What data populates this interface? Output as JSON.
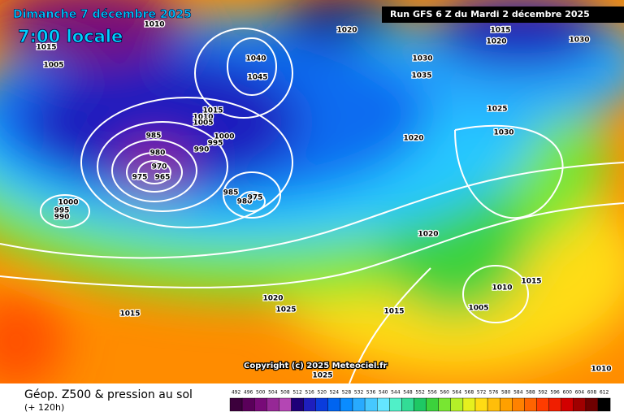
{
  "header": {
    "date": "Dimanche 7 décembre 2025",
    "time": "7:00 locale",
    "run": "Run GFS 6 Z du Mardi 2 décembre 2025"
  },
  "map": {
    "isobar_labels": [
      1010,
      1015,
      1005,
      1020,
      1030,
      1035,
      1015,
      1020,
      1030,
      1040,
      1045,
      1015,
      1010,
      1005,
      1000,
      995,
      990,
      985,
      980,
      970,
      975,
      965,
      985,
      980,
      975,
      1000,
      995,
      990,
      1025,
      1030,
      1020,
      1020,
      1020,
      1025,
      1015,
      1015,
      1010,
      1005,
      1015,
      1025,
      1010
    ],
    "copyright": "Copyright (c) 2025 Meteociel.fr"
  },
  "footer": {
    "title": "Géop. Z500 & pression au sol",
    "lead": "(+ 120h)"
  },
  "legend": {
    "ticks": [
      492,
      496,
      500,
      504,
      508,
      512,
      516,
      520,
      524,
      528,
      532,
      536,
      540,
      544,
      548,
      552,
      556,
      560,
      564,
      568,
      572,
      576,
      580,
      584,
      588,
      592,
      596,
      600,
      604,
      608,
      612
    ],
    "colors": [
      "#3c003c",
      "#5a005a",
      "#780a78",
      "#962896",
      "#b446b4",
      "#1e0078",
      "#1e1ebe",
      "#0a3cdc",
      "#0064f0",
      "#0a8cff",
      "#28aaff",
      "#46c8ff",
      "#64e6ff",
      "#50f0c8",
      "#32dc96",
      "#1ec864",
      "#3cd23c",
      "#78e632",
      "#b4f028",
      "#e6f01e",
      "#ffdc14",
      "#ffbe0a",
      "#ffa000",
      "#ff8200",
      "#ff6400",
      "#ff3c00",
      "#f01e00",
      "#d20000",
      "#a00000",
      "#6e0000",
      "#000000"
    ]
  }
}
